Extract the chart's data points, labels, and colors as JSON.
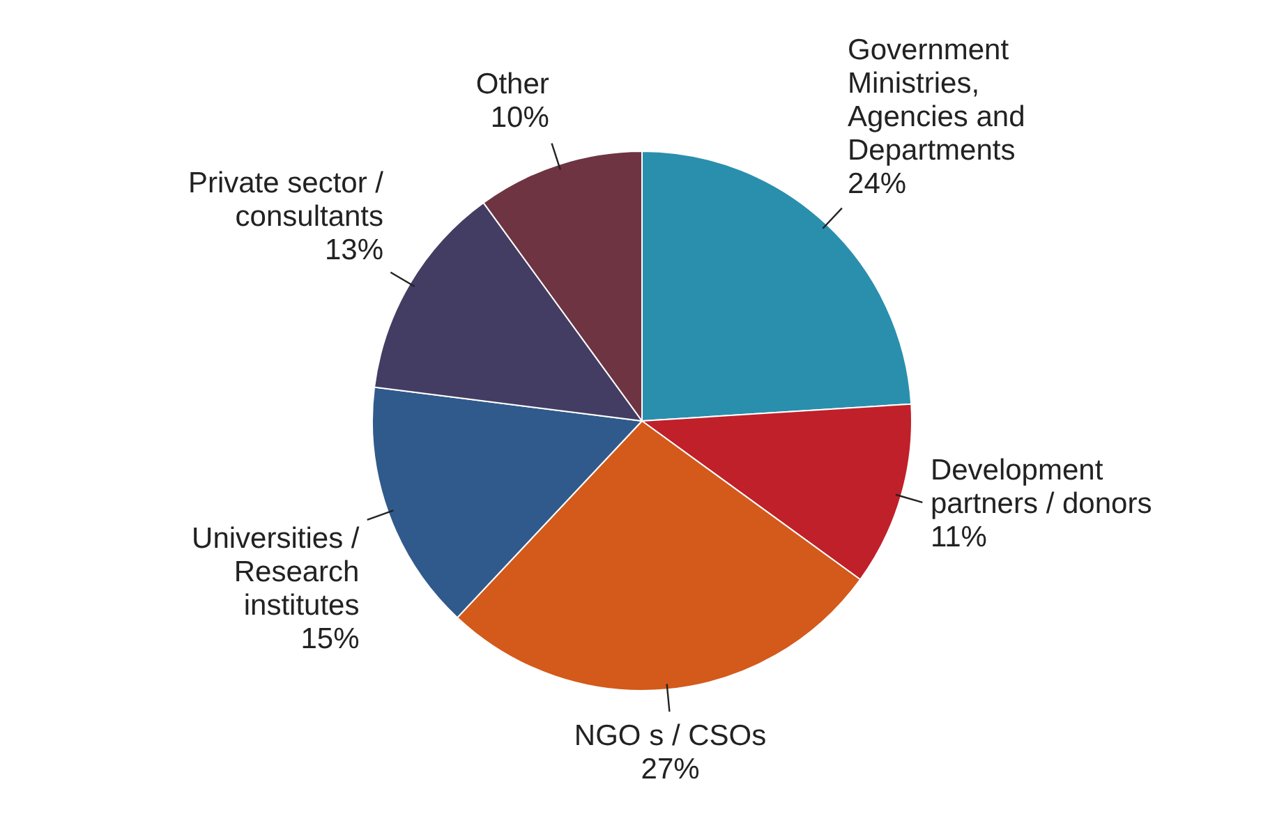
{
  "chart_data": {
    "type": "pie",
    "categories": [
      "Government Ministries, Agencies and Departments",
      "Development partners / donors",
      "NGO s / CSOs",
      "Universities / Research institutes",
      "Private sector / consultants",
      "Other"
    ],
    "values": [
      24,
      11,
      27,
      15,
      13,
      10
    ],
    "colors": [
      "#2a8fad",
      "#c0202a",
      "#d35a1a",
      "#305a8c",
      "#433d63",
      "#6e3442"
    ],
    "value_labels": [
      "24%",
      "11%",
      "27%",
      "15%",
      "13%",
      "10%"
    ]
  }
}
